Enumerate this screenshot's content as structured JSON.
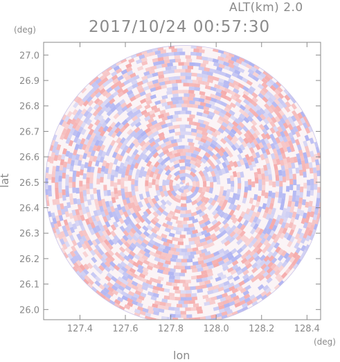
{
  "header": {
    "altitude_label": "ALT(km) 2.0",
    "datetime": "2017/10/24 00:57:30"
  },
  "chart_data": {
    "type": "heatmap",
    "title": "2017/10/24 00:57:30",
    "subtitle": "ALT(km) 2.0",
    "xlabel": "lon",
    "ylabel": "lat",
    "x_unit": "(deg)",
    "y_unit": "(deg)",
    "xlim": [
      127.24,
      128.46
    ],
    "ylim": [
      25.96,
      27.05
    ],
    "x_ticks": [
      "127.4",
      "127.6",
      "127.8",
      "128.0",
      "128.2",
      "128.4"
    ],
    "y_ticks": [
      "26.0",
      "26.1",
      "26.2",
      "26.3",
      "26.4",
      "26.5",
      "26.6",
      "26.7",
      "26.8",
      "26.9",
      "27.0"
    ],
    "radar_center": {
      "lon": 127.86,
      "lat": 26.49
    },
    "colors": {
      "positive": "#f4a6a6",
      "negative": "#aab0f2",
      "neutral": "#ffffff",
      "axis": "#8a8a8a"
    },
    "grid": false,
    "legend": "none"
  }
}
